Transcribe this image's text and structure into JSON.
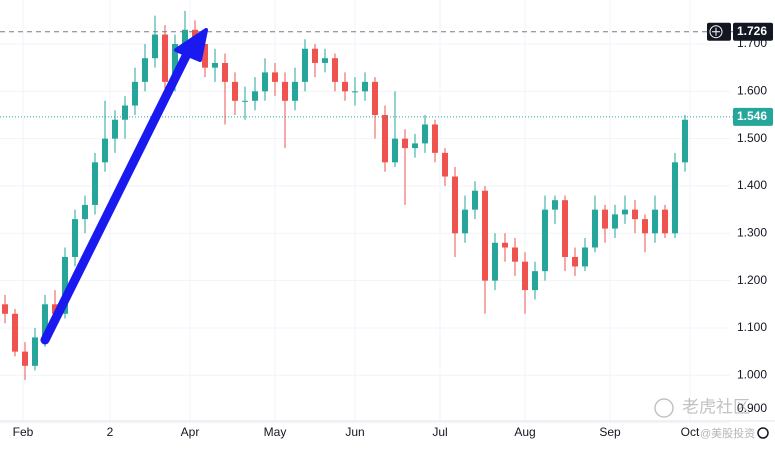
{
  "chart_data": {
    "type": "candlestick",
    "xlim": [
      -0.5,
      72.5
    ],
    "ylim": [
      0.84,
      1.793
    ],
    "xticks": [
      {
        "value": 1.8,
        "label": "Feb"
      },
      {
        "value": 10.5,
        "label": "2"
      },
      {
        "value": 18.5,
        "label": "Apr"
      },
      {
        "value": 27,
        "label": "May"
      },
      {
        "value": 35,
        "label": "Jun"
      },
      {
        "value": 43.5,
        "label": "Jul"
      },
      {
        "value": 52,
        "label": "Aug"
      },
      {
        "value": 60.5,
        "label": "Sep"
      },
      {
        "value": 68.5,
        "label": "Oct"
      }
    ],
    "yticks": [
      {
        "value": 0.9,
        "label": "0.900"
      },
      {
        "value": 1.0,
        "label": "1.000"
      },
      {
        "value": 1.1,
        "label": "1.100"
      },
      {
        "value": 1.2,
        "label": "1.200"
      },
      {
        "value": 1.3,
        "label": "1.300"
      },
      {
        "value": 1.4,
        "label": "1.400"
      },
      {
        "value": 1.5,
        "label": "1.500"
      },
      {
        "value": 1.6,
        "label": "1.600"
      },
      {
        "value": 1.7,
        "label": "1.700"
      }
    ],
    "grid": true,
    "up_color": "#26a69a",
    "down_color": "#ef5350",
    "open": [
      1.15,
      1.13,
      1.05,
      1.02,
      1.08,
      1.15,
      1.13,
      1.25,
      1.33,
      1.36,
      1.45,
      1.5,
      1.54,
      1.57,
      1.62,
      1.67,
      1.72,
      1.62,
      1.7,
      1.73,
      1.7,
      1.65,
      1.66,
      1.62,
      1.58,
      1.58,
      1.6,
      1.64,
      1.62,
      1.58,
      1.62,
      1.69,
      1.66,
      1.67,
      1.62,
      1.6,
      1.6,
      1.62,
      1.55,
      1.45,
      1.5,
      1.48,
      1.49,
      1.53,
      1.47,
      1.42,
      1.3,
      1.35,
      1.39,
      1.2,
      1.28,
      1.27,
      1.24,
      1.18,
      1.22,
      1.35,
      1.37,
      1.25,
      1.23,
      1.27,
      1.35,
      1.31,
      1.34,
      1.35,
      1.33,
      1.3,
      1.35,
      1.3,
      1.45
    ],
    "high": [
      1.17,
      1.14,
      1.07,
      1.1,
      1.17,
      1.18,
      1.27,
      1.35,
      1.38,
      1.47,
      1.58,
      1.56,
      1.59,
      1.65,
      1.7,
      1.76,
      1.74,
      1.72,
      1.77,
      1.75,
      1.72,
      1.69,
      1.68,
      1.64,
      1.61,
      1.63,
      1.67,
      1.66,
      1.64,
      1.65,
      1.71,
      1.7,
      1.69,
      1.68,
      1.64,
      1.63,
      1.64,
      1.63,
      1.57,
      1.6,
      1.52,
      1.51,
      1.55,
      1.54,
      1.48,
      1.44,
      1.38,
      1.41,
      1.4,
      1.3,
      1.3,
      1.29,
      1.26,
      1.24,
      1.38,
      1.38,
      1.38,
      1.27,
      1.29,
      1.38,
      1.36,
      1.36,
      1.38,
      1.37,
      1.34,
      1.38,
      1.36,
      1.47,
      1.55
    ],
    "low": [
      1.11,
      1.04,
      0.99,
      1.01,
      1.06,
      1.11,
      1.12,
      1.23,
      1.3,
      1.34,
      1.43,
      1.47,
      1.5,
      1.55,
      1.6,
      1.65,
      1.6,
      1.6,
      1.68,
      1.67,
      1.63,
      1.62,
      1.53,
      1.55,
      1.54,
      1.56,
      1.58,
      1.59,
      1.48,
      1.56,
      1.6,
      1.63,
      1.64,
      1.6,
      1.58,
      1.57,
      1.58,
      1.5,
      1.43,
      1.44,
      1.36,
      1.46,
      1.47,
      1.45,
      1.4,
      1.25,
      1.28,
      1.33,
      1.13,
      1.18,
      1.24,
      1.21,
      1.13,
      1.16,
      1.2,
      1.32,
      1.22,
      1.21,
      1.22,
      1.26,
      1.28,
      1.29,
      1.32,
      1.3,
      1.26,
      1.28,
      1.29,
      1.29,
      1.43
    ],
    "close": [
      1.13,
      1.05,
      1.02,
      1.08,
      1.15,
      1.13,
      1.25,
      1.33,
      1.36,
      1.45,
      1.5,
      1.54,
      1.57,
      1.62,
      1.67,
      1.72,
      1.62,
      1.7,
      1.73,
      1.7,
      1.65,
      1.66,
      1.62,
      1.58,
      1.58,
      1.6,
      1.64,
      1.62,
      1.58,
      1.62,
      1.69,
      1.66,
      1.67,
      1.62,
      1.6,
      1.6,
      1.62,
      1.55,
      1.45,
      1.5,
      1.48,
      1.49,
      1.53,
      1.47,
      1.42,
      1.3,
      1.35,
      1.39,
      1.2,
      1.28,
      1.27,
      1.24,
      1.18,
      1.22,
      1.35,
      1.37,
      1.25,
      1.23,
      1.27,
      1.35,
      1.31,
      1.34,
      1.35,
      1.33,
      1.3,
      1.35,
      1.3,
      1.45,
      1.54
    ],
    "reference_lines": [
      {
        "value": 1.726,
        "style": "dashed",
        "color": "#787b86",
        "label_bg": "#131722"
      },
      {
        "value": 1.546,
        "style": "dotted",
        "color": "#26a69a",
        "label_bg": "#26a69a"
      }
    ],
    "watermark": "老虎社区",
    "watermark_sub": "@美股投资"
  }
}
